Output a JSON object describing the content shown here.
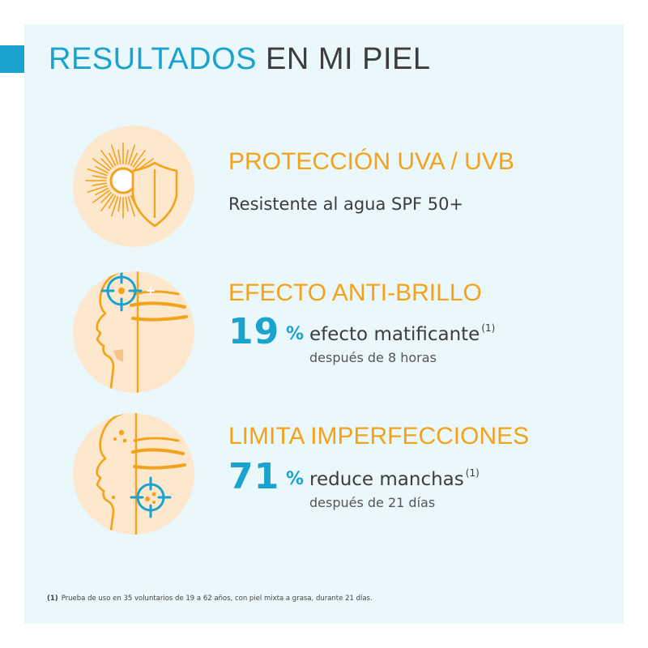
{
  "title": {
    "part1": "RESULTADOS",
    "part2": " EN MI PIEL"
  },
  "features": [
    {
      "icon": "sun-shield-icon",
      "heading": "PROTECCIÓN UVA / UVB",
      "subtitle": "Resistente al agua SPF 50+"
    },
    {
      "icon": "face-target-forehead-icon",
      "heading": "EFECTO ANTI-BRILLO",
      "stat": "19",
      "unit": "%",
      "label": "efecto matificante",
      "note": "(1)",
      "detail": "después de 8 horas"
    },
    {
      "icon": "face-target-cheek-icon",
      "heading": "LIMITA IMPERFECCIONES",
      "stat": "71",
      "unit": "%",
      "label": "reduce manchas",
      "note": "(1)",
      "detail": "después de 21 días"
    }
  ],
  "footnote": {
    "marker": "(1)",
    "text": "Prueba de uso en 35 voluntarios de 19 a 62 años, con piel mixta a grasa, durante 21 días."
  },
  "colors": {
    "accent_blue": "#1aa3cf",
    "accent_orange": "#f2a21b",
    "icon_bg": "#fde7cd",
    "panel_bg": "#eaf7fb"
  }
}
